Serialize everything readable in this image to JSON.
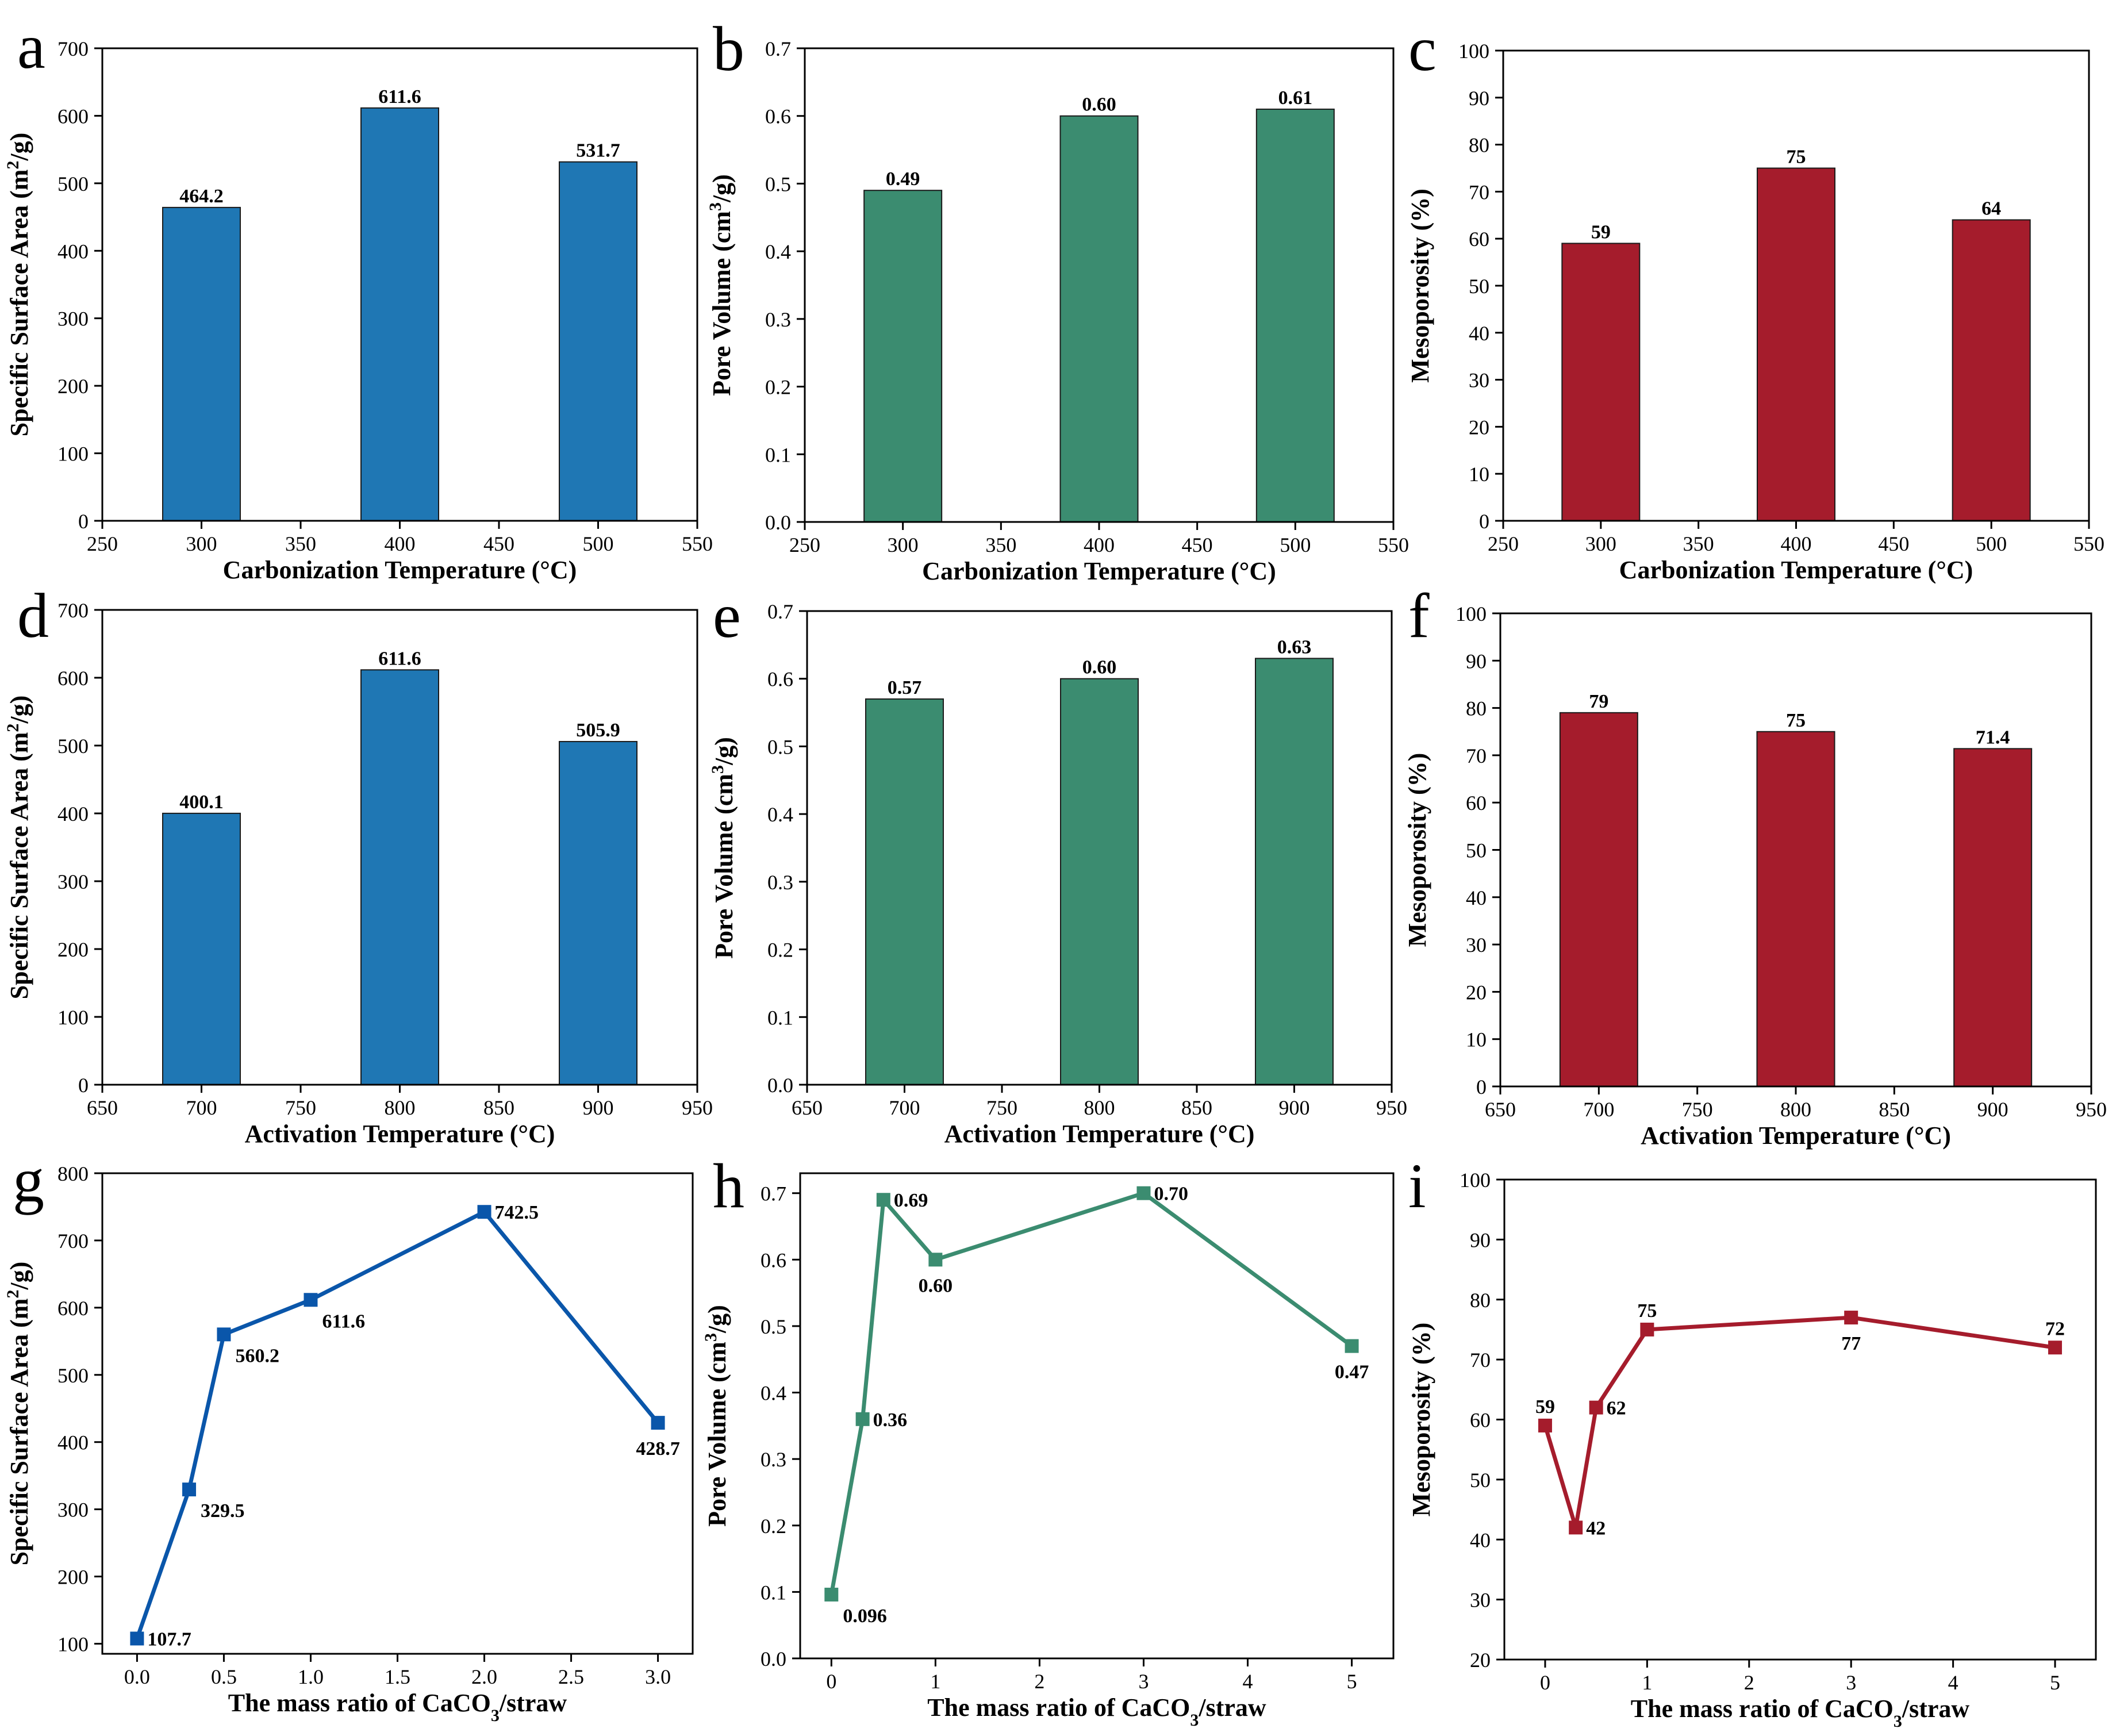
{
  "colors": {
    "blue": "#1f77b4",
    "green": "#3b8c70",
    "red": "#a51c2c",
    "line_blue": "#0a56aa"
  },
  "chart_data": [
    {
      "id": "a",
      "letter": "a",
      "type": "bar",
      "color": "blue",
      "x": [
        300,
        400,
        500
      ],
      "values": [
        464.2,
        611.6,
        531.7
      ],
      "labels": [
        "464.2",
        "611.6",
        "531.7"
      ],
      "xlim": [
        250,
        550
      ],
      "xticks": [
        250,
        300,
        350,
        400,
        450,
        500,
        550
      ],
      "xtick_labels": [
        "250",
        "300",
        "350",
        "400",
        "450",
        "500",
        "550"
      ],
      "ylim": [
        0,
        700
      ],
      "yticks": [
        0,
        100,
        200,
        300,
        400,
        500,
        600,
        700
      ],
      "ytick_labels": [
        "0",
        "100",
        "200",
        "300",
        "400",
        "500",
        "600",
        "700"
      ],
      "xlabel": "Carbonization Temperature (°C)",
      "ylabel": {
        "pre": "Specific Surface Area (m",
        "sup": "2",
        "post": "/g)"
      }
    },
    {
      "id": "b",
      "letter": "b",
      "type": "bar",
      "color": "green",
      "x": [
        300,
        400,
        500
      ],
      "values": [
        0.49,
        0.6,
        0.61
      ],
      "labels": [
        "0.49",
        "0.60",
        "0.61"
      ],
      "xlim": [
        250,
        550
      ],
      "xticks": [
        250,
        300,
        350,
        400,
        450,
        500,
        550
      ],
      "xtick_labels": [
        "250",
        "300",
        "350",
        "400",
        "450",
        "500",
        "550"
      ],
      "ylim": [
        0,
        0.7
      ],
      "yticks": [
        0,
        0.1,
        0.2,
        0.3,
        0.4,
        0.5,
        0.6,
        0.7
      ],
      "ytick_labels": [
        "0.0",
        "0.1",
        "0.2",
        "0.3",
        "0.4",
        "0.5",
        "0.6",
        "0.7"
      ],
      "xlabel": "Carbonization Temperature (°C)",
      "ylabel": {
        "pre": "Pore Volume (cm",
        "sup": "3",
        "post": "/g)"
      }
    },
    {
      "id": "c",
      "letter": "c",
      "type": "bar",
      "color": "red",
      "x": [
        300,
        400,
        500
      ],
      "values": [
        59,
        75,
        64
      ],
      "labels": [
        "59",
        "75",
        "64"
      ],
      "xlim": [
        250,
        550
      ],
      "xticks": [
        250,
        300,
        350,
        400,
        450,
        500,
        550
      ],
      "xtick_labels": [
        "250",
        "300",
        "350",
        "400",
        "450",
        "500",
        "550"
      ],
      "ylim": [
        0,
        100
      ],
      "yticks": [
        0,
        10,
        20,
        30,
        40,
        50,
        60,
        70,
        80,
        90,
        100
      ],
      "ytick_labels": [
        "0",
        "10",
        "20",
        "30",
        "40",
        "50",
        "60",
        "70",
        "80",
        "90",
        "100"
      ],
      "xlabel": "Carbonization Temperature (°C)",
      "ylabel": {
        "pre": "Mesoporosity (%)",
        "sup": "",
        "post": ""
      }
    },
    {
      "id": "d",
      "letter": "d",
      "type": "bar",
      "color": "blue",
      "x": [
        700,
        800,
        900
      ],
      "values": [
        400.1,
        611.6,
        505.9
      ],
      "labels": [
        "400.1",
        "611.6",
        "505.9"
      ],
      "xlim": [
        650,
        950
      ],
      "xticks": [
        650,
        700,
        750,
        800,
        850,
        900,
        950
      ],
      "xtick_labels": [
        "650",
        "700",
        "750",
        "800",
        "850",
        "900",
        "950"
      ],
      "ylim": [
        0,
        700
      ],
      "yticks": [
        0,
        100,
        200,
        300,
        400,
        500,
        600,
        700
      ],
      "ytick_labels": [
        "0",
        "100",
        "200",
        "300",
        "400",
        "500",
        "600",
        "700"
      ],
      "xlabel": "Activation Temperature (°C)",
      "ylabel": {
        "pre": "Specific Surface Area (m",
        "sup": "2",
        "post": "/g)"
      }
    },
    {
      "id": "e",
      "letter": "e",
      "type": "bar",
      "color": "green",
      "x": [
        700,
        800,
        900
      ],
      "values": [
        0.57,
        0.6,
        0.63
      ],
      "labels": [
        "0.57",
        "0.60",
        "0.63"
      ],
      "xlim": [
        650,
        950
      ],
      "xticks": [
        650,
        700,
        750,
        800,
        850,
        900,
        950
      ],
      "xtick_labels": [
        "650",
        "700",
        "750",
        "800",
        "850",
        "900",
        "950"
      ],
      "ylim": [
        0,
        0.7
      ],
      "yticks": [
        0,
        0.1,
        0.2,
        0.3,
        0.4,
        0.5,
        0.6,
        0.7
      ],
      "ytick_labels": [
        "0.0",
        "0.1",
        "0.2",
        "0.3",
        "0.4",
        "0.5",
        "0.6",
        "0.7"
      ],
      "xlabel": "Activation Temperature (°C)",
      "ylabel": {
        "pre": "Pore Volume (cm",
        "sup": "3",
        "post": "/g)"
      }
    },
    {
      "id": "f",
      "letter": "f",
      "type": "bar",
      "color": "red",
      "x": [
        700,
        800,
        900
      ],
      "values": [
        79,
        75,
        71.4
      ],
      "labels": [
        "79",
        "75",
        "71.4"
      ],
      "xlim": [
        650,
        950
      ],
      "xticks": [
        650,
        700,
        750,
        800,
        850,
        900,
        950
      ],
      "xtick_labels": [
        "650",
        "700",
        "750",
        "800",
        "850",
        "900",
        "950"
      ],
      "ylim": [
        0,
        100
      ],
      "yticks": [
        0,
        10,
        20,
        30,
        40,
        50,
        60,
        70,
        80,
        90,
        100
      ],
      "ytick_labels": [
        "0",
        "10",
        "20",
        "30",
        "40",
        "50",
        "60",
        "70",
        "80",
        "90",
        "100"
      ],
      "xlabel": "Activation Temperature (°C)",
      "ylabel": {
        "pre": "Mesoporosity (%)",
        "sup": "",
        "post": ""
      }
    },
    {
      "id": "g",
      "letter": "g",
      "type": "line",
      "color": "line_blue",
      "x": [
        0,
        0.3,
        0.5,
        1.0,
        2.0,
        3.0
      ],
      "values": [
        107.7,
        329.5,
        560.2,
        611.6,
        742.5,
        428.7
      ],
      "labels": [
        "107.7",
        "329.5",
        "560.2",
        "611.6",
        "742.5",
        "428.7"
      ],
      "label_pos": [
        "right",
        "right-below",
        "right-below",
        "right-below",
        "right",
        "below"
      ],
      "xlim": [
        -0.2,
        3.2
      ],
      "xticks": [
        0,
        0.5,
        1.0,
        1.5,
        2.0,
        2.5,
        3.0
      ],
      "xtick_labels": [
        "0.0",
        "0.5",
        "1.0",
        "1.5",
        "2.0",
        "2.5",
        "3.0"
      ],
      "ylim": [
        85,
        800
      ],
      "yticks": [
        100,
        200,
        300,
        400,
        500,
        600,
        700,
        800
      ],
      "ytick_labels": [
        "100",
        "200",
        "300",
        "400",
        "500",
        "600",
        "700",
        "800"
      ],
      "xlabel": {
        "pre": "The mass ratio of CaCO",
        "sub": "3",
        "post": "/straw"
      },
      "ylabel": {
        "pre": "Specific Surface Area (m",
        "sup": "2",
        "post": "/g)"
      }
    },
    {
      "id": "h",
      "letter": "h",
      "type": "line",
      "color": "green",
      "x": [
        0,
        0.3,
        0.5,
        1.0,
        3.0,
        5.0
      ],
      "values": [
        0.096,
        0.36,
        0.69,
        0.6,
        0.7,
        0.47
      ],
      "labels": [
        "0.096",
        "0.36",
        "0.69",
        "0.60",
        "0.70",
        "0.47"
      ],
      "label_pos": [
        "right-below",
        "right",
        "right",
        "below",
        "right",
        "below"
      ],
      "xlim": [
        -0.3,
        5.4
      ],
      "xticks": [
        0,
        1,
        2,
        3,
        4,
        5
      ],
      "xtick_labels": [
        "0",
        "1",
        "2",
        "3",
        "4",
        "5"
      ],
      "ylim": [
        0,
        0.73
      ],
      "yticks": [
        0,
        0.1,
        0.2,
        0.3,
        0.4,
        0.5,
        0.6,
        0.7
      ],
      "ytick_labels": [
        "0.0",
        "0.1",
        "0.2",
        "0.3",
        "0.4",
        "0.5",
        "0.6",
        "0.7"
      ],
      "xlabel": {
        "pre": "The mass ratio of CaCO",
        "sub": "3",
        "post": "/straw"
      },
      "ylabel": {
        "pre": "Pore Volume (cm",
        "sup": "3",
        "post": "/g)"
      }
    },
    {
      "id": "i",
      "letter": "i",
      "type": "line",
      "color": "red",
      "x": [
        0,
        0.3,
        0.5,
        1.0,
        3.0,
        5.0
      ],
      "values": [
        59,
        42,
        62,
        75,
        77,
        72
      ],
      "labels": [
        "59",
        "42",
        "62",
        "75",
        "77",
        "72"
      ],
      "label_pos": [
        "above",
        "right",
        "right",
        "above",
        "below",
        "above"
      ],
      "xlim": [
        -0.4,
        5.4
      ],
      "xticks": [
        0,
        1,
        2,
        3,
        4,
        5
      ],
      "xtick_labels": [
        "0",
        "1",
        "2",
        "3",
        "4",
        "5"
      ],
      "ylim": [
        20,
        100
      ],
      "yticks": [
        20,
        30,
        40,
        50,
        60,
        70,
        80,
        90,
        100
      ],
      "ytick_labels": [
        "20",
        "30",
        "40",
        "50",
        "60",
        "70",
        "80",
        "90",
        "100"
      ],
      "xlabel": {
        "pre": "The mass ratio of CaCO",
        "sub": "3",
        "post": "/straw"
      },
      "ylabel": {
        "pre": "Mesoporosity (%)",
        "sup": "",
        "post": ""
      }
    }
  ]
}
